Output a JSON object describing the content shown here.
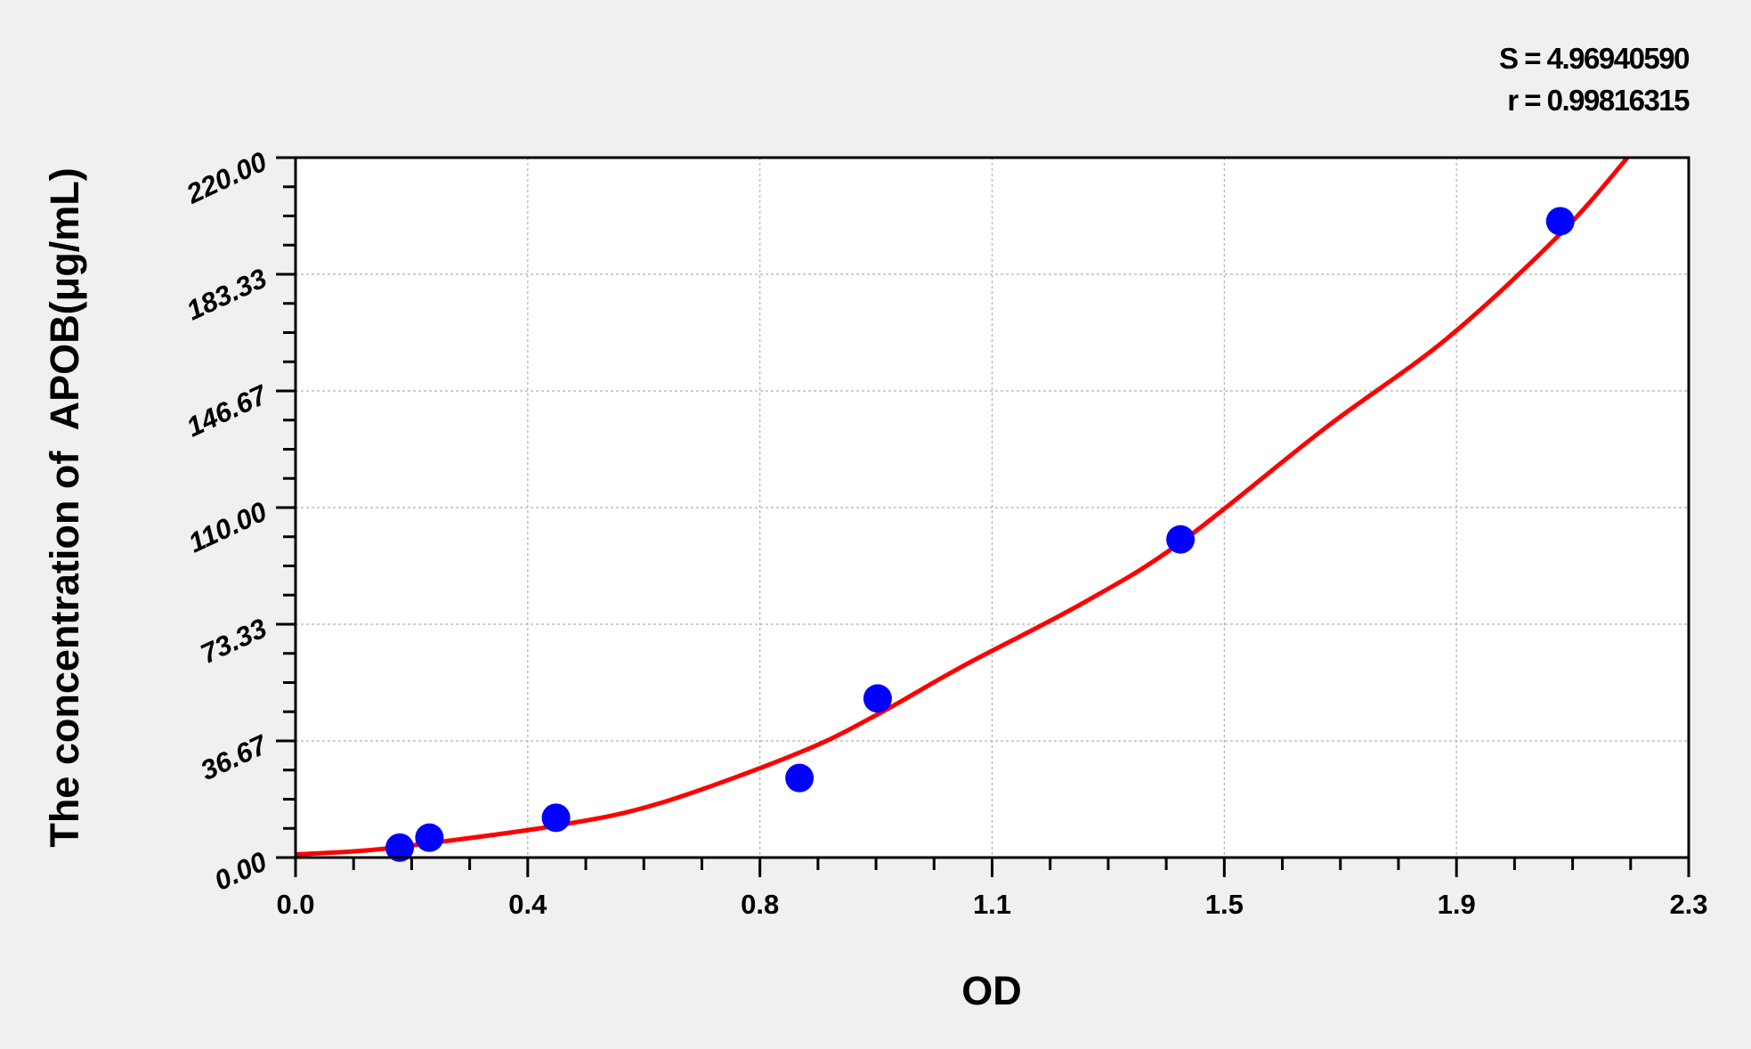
{
  "chart_data": {
    "type": "scatter",
    "title": "",
    "xlabel": "OD",
    "ylabel": "The concentration of  APOB(μg/mL)",
    "xlim": [
      0,
      2.3
    ],
    "ylim": [
      0,
      220
    ],
    "x_tick_labels": [
      "0.0",
      "0.4",
      "0.8",
      "1.1",
      "1.5",
      "1.9",
      "2.3"
    ],
    "y_tick_labels": [
      "0.00",
      "36.67",
      "73.33",
      "110.00",
      "146.67",
      "183.33",
      "220.00"
    ],
    "grid": true,
    "annotations": [
      "S = 4.96940590",
      "r = 0.99816315"
    ],
    "points": {
      "x": [
        0.172,
        0.221,
        0.43,
        0.832,
        0.961,
        1.461,
        2.088
      ],
      "y": [
        3.125,
        6.25,
        12.5,
        25,
        50,
        100,
        200
      ],
      "color": "#0000ff"
    },
    "fit_curve": {
      "x": [
        0,
        0.1,
        0.2,
        0.43,
        0.6,
        0.832,
        0.961,
        1.1,
        1.3,
        1.461,
        1.7,
        1.9,
        2.088,
        2.199
      ],
      "y": [
        1,
        2,
        4,
        10,
        17,
        33,
        45,
        60,
        80,
        99,
        135,
        163,
        196,
        220
      ],
      "color": "#ff0000"
    }
  }
}
